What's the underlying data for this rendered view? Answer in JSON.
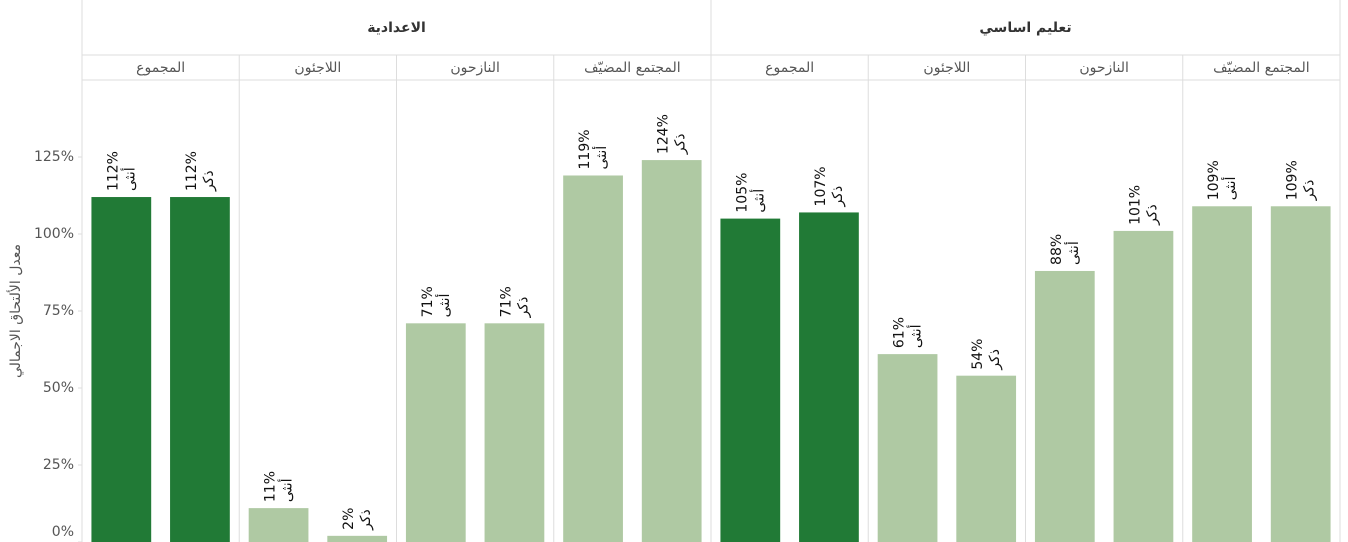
{
  "chart_data": {
    "type": "bar",
    "y_label": "معدل الألتحاق الاجمالي",
    "ylim": [
      0,
      150
    ],
    "yticks": [
      {
        "value": 0,
        "label": "0%"
      },
      {
        "value": 25,
        "label": "25%"
      },
      {
        "value": 50,
        "label": "50%"
      },
      {
        "value": 75,
        "label": "75%"
      },
      {
        "value": 100,
        "label": "100%"
      },
      {
        "value": 125,
        "label": "125%"
      }
    ],
    "grid": false,
    "categories": [
      "أنثى",
      "ذكر"
    ],
    "groups": [
      {
        "name": "الاعدادية",
        "subgroups": [
          {
            "name": "المجموع",
            "color": "#217a36",
            "values": [
              112,
              112
            ],
            "value_labels": [
              "112%",
              "112%"
            ]
          },
          {
            "name": "اللاجئون",
            "color": "#afc9a3",
            "values": [
              11,
              2
            ],
            "value_labels": [
              "11%",
              "2%"
            ]
          },
          {
            "name": "النازحون",
            "color": "#afc9a3",
            "values": [
              71,
              71
            ],
            "value_labels": [
              "71%",
              "71%"
            ]
          },
          {
            "name": "المجتمع المضيّف",
            "color": "#afc9a3",
            "values": [
              119,
              124
            ],
            "value_labels": [
              "119%",
              "124%"
            ]
          }
        ]
      },
      {
        "name": "تعليم اساسي",
        "subgroups": [
          {
            "name": "المجموع",
            "color": "#217a36",
            "values": [
              105,
              107
            ],
            "value_labels": [
              "105%",
              "107%"
            ]
          },
          {
            "name": "اللاجئون",
            "color": "#afc9a3",
            "values": [
              61,
              54
            ],
            "value_labels": [
              "61%",
              "54%"
            ]
          },
          {
            "name": "النازحون",
            "color": "#afc9a3",
            "values": [
              88,
              101
            ],
            "value_labels": [
              "88%",
              "101%"
            ]
          },
          {
            "name": "المجتمع المضيّف",
            "color": "#afc9a3",
            "values": [
              109,
              109
            ],
            "value_labels": [
              "109%",
              "109%"
            ]
          }
        ]
      }
    ]
  }
}
